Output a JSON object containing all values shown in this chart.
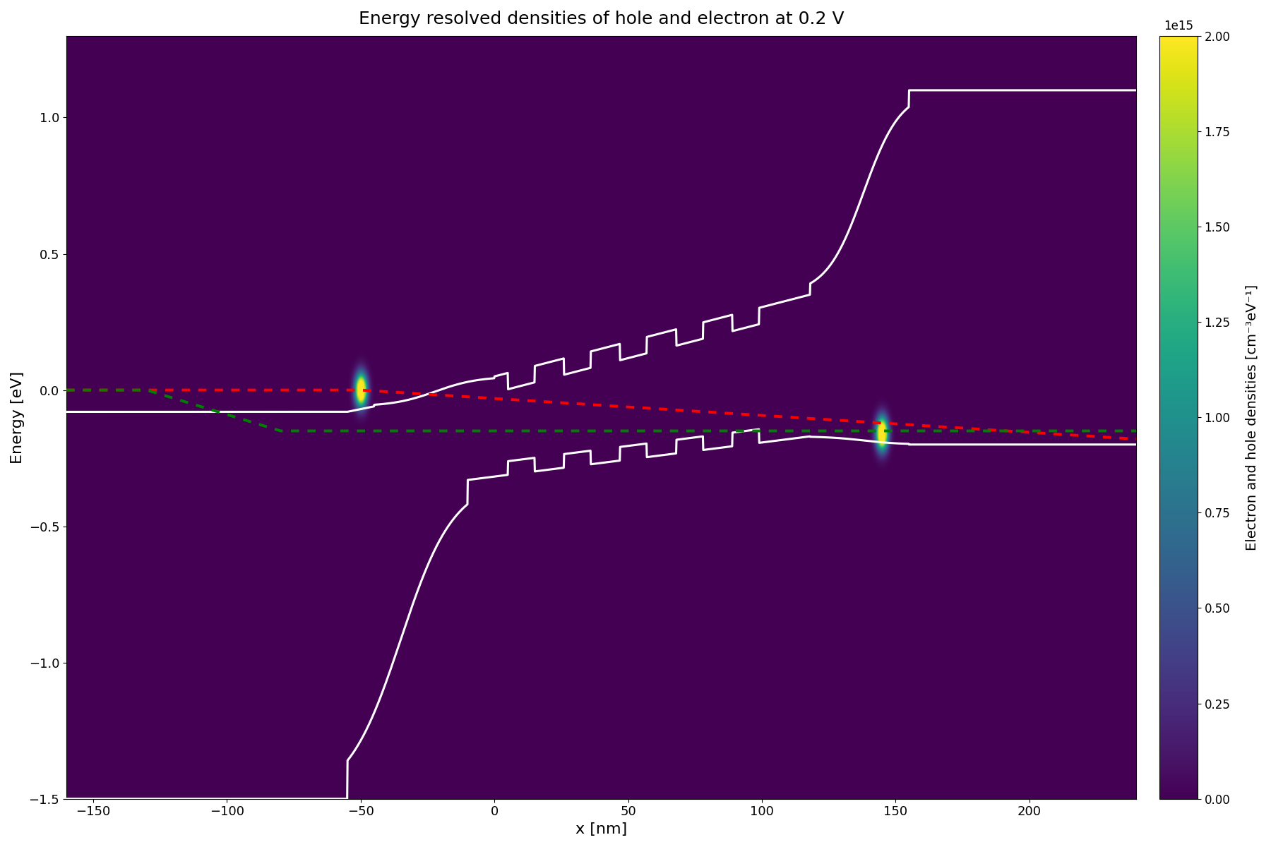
{
  "title": "Energy resolved densities of hole and electron at 0.2 V",
  "xlabel": "x [nm]",
  "ylabel": "Energy [eV]",
  "colorbar_label": "Electron and hole densities [cm⁻³eV⁻¹]",
  "xlim": [
    -160,
    240
  ],
  "ylim": [
    -1.5,
    1.3
  ],
  "x_ticks": [
    -150,
    -100,
    -50,
    0,
    50,
    100,
    150,
    200
  ],
  "y_ticks": [
    -1.5,
    -1.0,
    -0.5,
    0.0,
    0.5,
    1.0
  ],
  "vmin": 0,
  "vmax": 2000000000000000.0,
  "colorbar_ticks": [
    0,
    250000000000000.0,
    500000000000000.0,
    750000000000000.0,
    1000000000000000.0,
    1250000000000000.0,
    1500000000000000.0,
    1750000000000000.0,
    2000000000000000.0
  ],
  "colorbar_tick_labels": [
    "0.00",
    "0.25",
    "0.50",
    "0.75",
    "1.00",
    "1.25",
    "1.50",
    "1.75",
    "2.00"
  ],
  "line_color": "white",
  "electron_qfl_color": "red",
  "hole_qfl_color": "green",
  "figsize": [
    18,
    12
  ],
  "dpi": 100,
  "spot1_x": -50,
  "spot1_e": 0.0,
  "spot2_x": 145,
  "spot2_e": -0.16,
  "spot_sigma_x": 1.5,
  "spot_sigma_e": 0.04,
  "spot_amplitude": 3000000000000000.0
}
